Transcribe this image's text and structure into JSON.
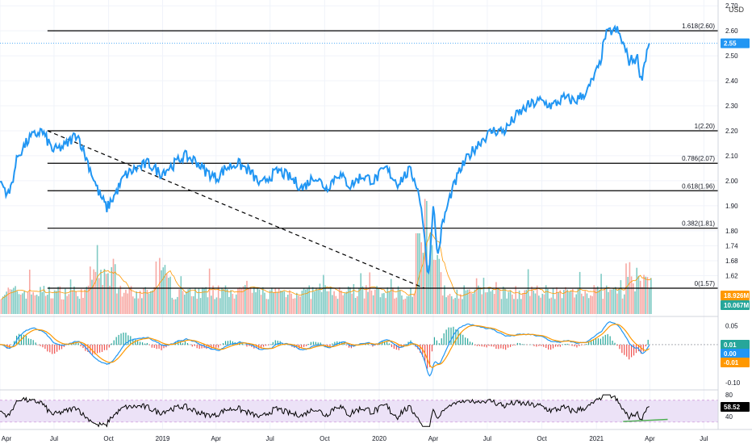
{
  "currency": "USD",
  "colors": {
    "price_line": "#2196f3",
    "fib_line": "#000000",
    "trend_line": "#000000",
    "volume_up": "#80cbc4",
    "volume_down": "#f7a8a3",
    "volume_ma": "#ff9800",
    "macd_line": "#2196f3",
    "signal_line": "#ff9800",
    "hist_up": "#26a69a",
    "hist_down": "#ef5350",
    "rsi_line": "#000000",
    "rsi_band": "#ece2f7",
    "rsi_band_edge": "#9c27b0",
    "rsi_trend": "#4caf50",
    "badge_price": "#2196f3",
    "badge_vol_orange": "#ff9800",
    "badge_vol_teal": "#26a69a",
    "badge_macd_teal": "#26a69a",
    "badge_macd_blue": "#2196f3",
    "badge_macd_orange": "#ff9800",
    "badge_rsi": "#000000"
  },
  "chart_data": {
    "type": "line",
    "price_axis": {
      "ticks": [
        "2.70",
        "2.60",
        "2.50",
        "2.40",
        "2.30",
        "2.20",
        "2.10",
        "2.00",
        "1.90",
        "1.80",
        "1.74",
        "1.68",
        "1.62"
      ],
      "ylim": [
        1.57,
        2.72
      ]
    },
    "time_axis": {
      "ticks": [
        "Apr",
        "Jul",
        "Oct",
        "2019",
        "Apr",
        "Jul",
        "Oct",
        "2020",
        "Apr",
        "Jul",
        "Oct",
        "2021",
        "Apr",
        "Jul"
      ],
      "tick_index": [
        0,
        91,
        183,
        274,
        364,
        455,
        547,
        639,
        730,
        821,
        913,
        1005,
        1095,
        1186
      ]
    },
    "price_series": {
      "name": "Price",
      "points": [
        [
          0,
          2.0
        ],
        [
          15,
          1.94
        ],
        [
          30,
          2.1
        ],
        [
          50,
          2.17
        ],
        [
          70,
          2.2
        ],
        [
          90,
          2.12
        ],
        [
          110,
          2.14
        ],
        [
          130,
          2.19
        ],
        [
          150,
          2.06
        ],
        [
          165,
          1.96
        ],
        [
          180,
          1.89
        ],
        [
          195,
          1.95
        ],
        [
          210,
          2.02
        ],
        [
          230,
          2.05
        ],
        [
          250,
          2.07
        ],
        [
          270,
          2.03
        ],
        [
          290,
          2.06
        ],
        [
          310,
          2.1
        ],
        [
          330,
          2.08
        ],
        [
          345,
          2.04
        ],
        [
          365,
          2.01
        ],
        [
          380,
          2.05
        ],
        [
          400,
          2.07
        ],
        [
          420,
          2.04
        ],
        [
          440,
          1.98
        ],
        [
          450,
          2.01
        ],
        [
          470,
          2.04
        ],
        [
          490,
          2.01
        ],
        [
          510,
          1.97
        ],
        [
          530,
          2.02
        ],
        [
          550,
          1.97
        ],
        [
          570,
          2.03
        ],
        [
          590,
          1.98
        ],
        [
          610,
          2.02
        ],
        [
          630,
          2.0
        ],
        [
          650,
          2.05
        ],
        [
          670,
          1.99
        ],
        [
          690,
          2.04
        ],
        [
          700,
          2.0
        ],
        [
          710,
          1.9
        ],
        [
          718,
          1.7
        ],
        [
          722,
          1.62
        ],
        [
          726,
          1.75
        ],
        [
          730,
          1.92
        ],
        [
          734,
          1.78
        ],
        [
          738,
          1.7
        ],
        [
          745,
          1.82
        ],
        [
          760,
          1.95
        ],
        [
          775,
          2.04
        ],
        [
          790,
          2.1
        ],
        [
          810,
          2.16
        ],
        [
          830,
          2.2
        ],
        [
          850,
          2.2
        ],
        [
          870,
          2.26
        ],
        [
          890,
          2.3
        ],
        [
          910,
          2.32
        ],
        [
          930,
          2.3
        ],
        [
          950,
          2.33
        ],
        [
          970,
          2.32
        ],
        [
          990,
          2.36
        ],
        [
          1010,
          2.46
        ],
        [
          1020,
          2.58
        ],
        [
          1030,
          2.6
        ],
        [
          1040,
          2.6
        ],
        [
          1048,
          2.56
        ],
        [
          1060,
          2.48
        ],
        [
          1075,
          2.49
        ],
        [
          1080,
          2.4
        ],
        [
          1085,
          2.46
        ],
        [
          1090,
          2.52
        ],
        [
          1095,
          2.55
        ]
      ],
      "last_value": "2.55"
    },
    "fib_levels": [
      {
        "label": "1.618(2.60)",
        "value": 2.6
      },
      {
        "label": "1(2.20)",
        "value": 2.2
      },
      {
        "label": "0.786(2.07)",
        "value": 2.07
      },
      {
        "label": "0.618(1.96)",
        "value": 1.96
      },
      {
        "label": "0.382(1.81)",
        "value": 1.81
      },
      {
        "label": "0(1.57)",
        "value": 1.57
      }
    ],
    "fib_start_index": 80,
    "trendline": {
      "start": [
        80,
        2.2
      ],
      "end": [
        715,
        1.57
      ]
    },
    "volume": {
      "badges": [
        "18.926M",
        "10.067M"
      ]
    },
    "macd": {
      "ticks": [
        "0.05",
        "0.00",
        "-0.05",
        "-0.10"
      ],
      "ylim": [
        -0.115,
        0.07
      ],
      "badges": [
        "0.01",
        "0.00",
        "-0.01"
      ]
    },
    "rsi": {
      "ticks": [
        "80",
        "60",
        "40"
      ],
      "ylim": [
        18,
        86
      ],
      "band": [
        30,
        70
      ],
      "last_value": "58.52",
      "trendline": {
        "start": [
          1050,
          31
        ],
        "end": [
          1125,
          35
        ]
      }
    }
  }
}
